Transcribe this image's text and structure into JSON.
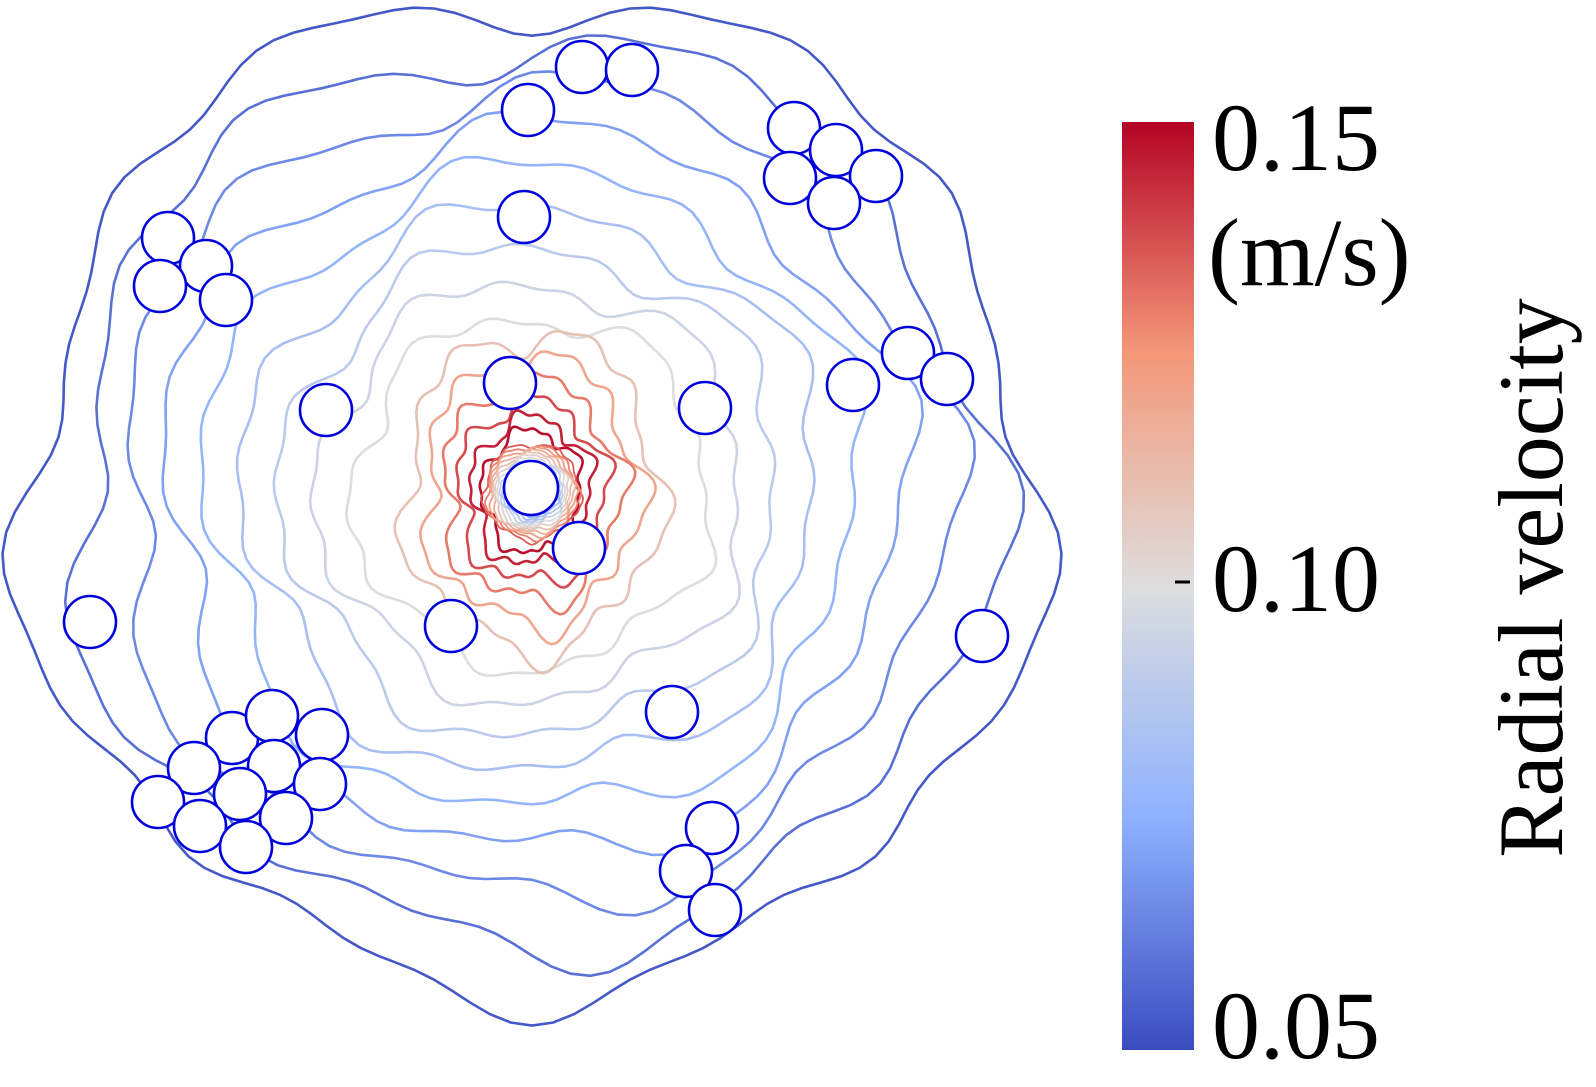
{
  "colorbar": {
    "title": "Radial velocity",
    "unit": "(m/s)",
    "max_label": "0.15",
    "mid_label": "0.10",
    "min_label": "0.05",
    "colors": {
      "low": "#3b4cc0",
      "low_mid": "#8fb1fe",
      "mid": "#dddddd",
      "high_mid": "#f4987a",
      "high": "#b40426"
    }
  },
  "particles": {
    "outline_color": "#0000dd",
    "count": 37
  }
}
